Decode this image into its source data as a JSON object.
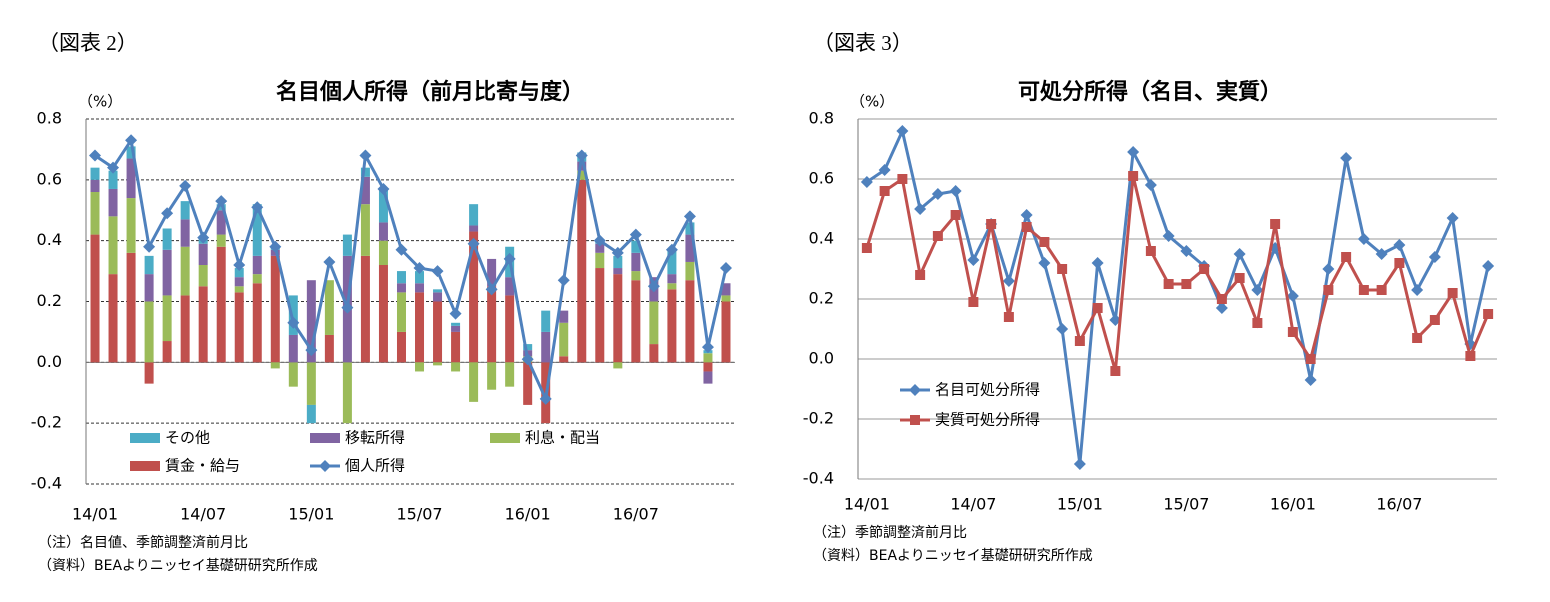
{
  "chart_data": [
    {
      "type": "bar",
      "figure_label": "（図表 2）",
      "title": "名目個人所得（前月比寄与度）",
      "unit": "（%）",
      "notes": [
        "（注）名目値、季節調整済前月比",
        "（資料）BEAよりニッセイ基礎研研究所作成"
      ],
      "categories": [
        "14/01",
        null,
        null,
        null,
        null,
        null,
        "14/07",
        null,
        null,
        null,
        null,
        null,
        "15/01",
        null,
        null,
        null,
        null,
        null,
        "15/07",
        null,
        null,
        null,
        null,
        null,
        "16/01",
        null,
        null,
        null,
        null,
        null,
        "16/07",
        null,
        null,
        null,
        null,
        null
      ],
      "ylim": [
        -0.4,
        0.8
      ],
      "yticks": [
        {
          "value": -0.4,
          "label": "-0.4"
        },
        {
          "value": -0.2,
          "label": "-0.2"
        },
        {
          "value": 0,
          "label": "0.0"
        },
        0.2,
        0.4,
        0.6,
        0.8
      ],
      "grid": true,
      "legend": "lower center",
      "series": [
        {
          "name": "その他",
          "color": "#4bacc6",
          "values": [
            0.04,
            0.06,
            0.04,
            0.06,
            0.07,
            0.06,
            0.02,
            0.02,
            0.03,
            0.17,
            0.01,
            0.13,
            -0.06,
            0.0,
            0.07,
            0.03,
            0.11,
            0.04,
            0.04,
            0.01,
            0.01,
            0.07,
            0.0,
            0.1,
            0.02,
            0.07,
            0.0,
            0.03,
            0.01,
            0.04,
            0.04,
            0.0,
            0.08,
            0.04,
            0.01,
            0.0
          ]
        },
        {
          "name": "移転所得",
          "color": "#8064a2",
          "values": [
            0.04,
            0.09,
            0.13,
            0.09,
            0.15,
            0.09,
            0.07,
            0.08,
            0.03,
            0.06,
            0.02,
            0.09,
            0.27,
            0.0,
            0.35,
            0.09,
            0.06,
            0.03,
            0.03,
            0.03,
            0.02,
            0.02,
            0.09,
            0.06,
            0.02,
            0.1,
            0.04,
            0.03,
            0.03,
            0.02,
            0.06,
            0.08,
            0.03,
            0.09,
            -0.04,
            0.04
          ]
        },
        {
          "name": "利息・配当",
          "color": "#9bbb59",
          "values": [
            0.14,
            0.19,
            0.18,
            0.2,
            0.15,
            0.16,
            0.07,
            0.04,
            0.02,
            0.03,
            -0.02,
            -0.08,
            -0.14,
            0.18,
            -0.2,
            0.17,
            0.08,
            0.13,
            -0.03,
            -0.01,
            -0.03,
            -0.13,
            -0.09,
            -0.08,
            0.02,
            0.0,
            0.11,
            0.03,
            0.05,
            -0.02,
            0.03,
            0.14,
            0.02,
            0.06,
            0.03,
            0.02
          ]
        },
        {
          "name": "賃金・給与",
          "color": "#c0504d",
          "values": [
            0.42,
            0.29,
            0.36,
            -0.07,
            0.07,
            0.22,
            0.25,
            0.38,
            0.23,
            0.26,
            0.35,
            0.0,
            0.0,
            0.09,
            0.0,
            0.35,
            0.32,
            0.1,
            0.23,
            0.2,
            0.1,
            0.43,
            0.25,
            0.22,
            -0.14,
            -0.2,
            0.02,
            0.6,
            0.31,
            0.29,
            0.27,
            0.06,
            0.24,
            0.27,
            -0.03,
            0.2
          ]
        },
        {
          "name": "個人所得",
          "color": "#4f81bd",
          "type": "line",
          "marker": "diamond",
          "values": [
            0.68,
            0.64,
            0.73,
            0.38,
            0.49,
            0.58,
            0.41,
            0.53,
            0.32,
            0.51,
            0.38,
            0.13,
            0.04,
            0.33,
            0.18,
            0.68,
            0.57,
            0.37,
            0.31,
            0.3,
            0.16,
            0.39,
            0.24,
            0.34,
            0.01,
            -0.12,
            0.27,
            0.68,
            0.4,
            0.36,
            0.42,
            0.25,
            0.37,
            0.48,
            0.05,
            0.31
          ]
        }
      ]
    },
    {
      "type": "line",
      "figure_label": "（図表 3）",
      "title": "可処分所得（名目、実質）",
      "unit": "（%）",
      "notes": [
        "（注）季節調整済前月比",
        "（資料）BEAよりニッセイ基礎研研究所作成"
      ],
      "categories": [
        "14/01",
        null,
        null,
        null,
        null,
        null,
        "14/07",
        null,
        null,
        null,
        null,
        null,
        "15/01",
        null,
        null,
        null,
        null,
        null,
        "15/07",
        null,
        null,
        null,
        null,
        null,
        "16/01",
        null,
        null,
        null,
        null,
        null,
        "16/07",
        null,
        null,
        null,
        null,
        null
      ],
      "ylim": [
        -0.4,
        0.8
      ],
      "yticks": [
        {
          "value": -0.4,
          "label": "-0.4"
        },
        {
          "value": -0.2,
          "label": "-0.2"
        },
        {
          "value": 0,
          "label": "0.0"
        },
        0.2,
        0.4,
        0.6,
        0.8
      ],
      "grid": true,
      "legend": "lower left",
      "series": [
        {
          "name": "名目可処分所得",
          "color": "#4f81bd",
          "marker": "diamond",
          "values": [
            0.59,
            0.63,
            0.76,
            0.5,
            0.55,
            0.56,
            0.33,
            0.45,
            0.26,
            0.48,
            0.32,
            0.1,
            -0.35,
            0.32,
            0.13,
            0.69,
            0.58,
            0.41,
            0.36,
            0.31,
            0.17,
            0.35,
            0.23,
            0.37,
            0.21,
            -0.07,
            0.3,
            0.67,
            0.4,
            0.35,
            0.38,
            0.23,
            0.34,
            0.47,
            0.05,
            0.31
          ]
        },
        {
          "name": "実質可処分所得",
          "color": "#c0504d",
          "marker": "square",
          "values": [
            0.37,
            0.56,
            0.6,
            0.28,
            0.41,
            0.48,
            0.19,
            0.45,
            0.14,
            0.44,
            0.39,
            0.3,
            0.06,
            0.17,
            -0.04,
            0.61,
            0.36,
            0.25,
            0.25,
            0.3,
            0.2,
            0.27,
            0.12,
            0.45,
            0.09,
            0.0,
            0.23,
            0.34,
            0.23,
            0.23,
            0.32,
            0.07,
            0.13,
            0.22,
            0.01,
            0.15
          ]
        }
      ]
    }
  ]
}
